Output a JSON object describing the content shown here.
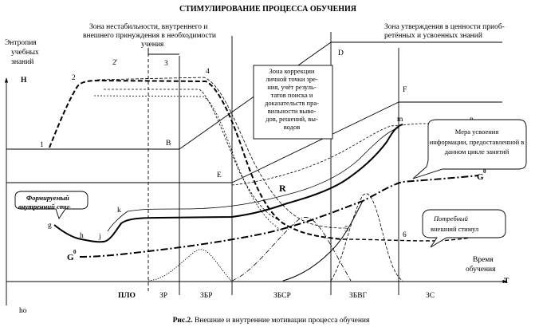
{
  "title": "СТИМУЛИРОВАНИЕ ПРОЦЕССА ОБУЧЕНИЯ",
  "caption_bold": "Рис.2.",
  "caption_text": " Внешние и внутренние мотивации процесса обучения",
  "y_axis": {
    "label_lines": [
      "Энтропия",
      "учебных",
      "знаний"
    ],
    "symbol": "Н",
    "origin": "ho"
  },
  "x_axis": {
    "label_lines": [
      "Время",
      "обучения"
    ],
    "symbol": "Т",
    "zones": [
      "ПЛО",
      "ЗР",
      "ЗБР",
      "ЗБСР",
      "ЗБВГ",
      "ЗС"
    ]
  },
  "zone_texts": {
    "instability": [
      "Зона нестабильности, внутреннего и",
      "внешнего принуждения в необходимости",
      "учения"
    ],
    "affirmation": [
      "Зона утверждения в ценности приоб-",
      "ретённых и усвоенных знаний"
    ],
    "correction": [
      "Зона коррекции",
      "личной точки зре-",
      "ния, учёт резуль-",
      "татов поиска и",
      "доказательств пра-",
      "вильности выво-",
      "дов, решений, вы-",
      "водов"
    ]
  },
  "callouts": {
    "measure": [
      "Мера усвоения",
      "информации, предоставленной в",
      "данном цикле занятий"
    ],
    "forming": [
      "Формируемый",
      "внутренний сти-"
    ],
    "required": [
      "Потребный",
      "внешний стимул"
    ]
  },
  "point_labels": {
    "p1": "1",
    "p2": "2",
    "p2prime": "2'",
    "p3": "3",
    "p4": "4",
    "p5": "5",
    "p6": "6",
    "B": "В",
    "D": "D",
    "E": "E",
    "F": "F",
    "m": "m",
    "n": "n",
    "R": "R",
    "g": "g",
    "h": "h",
    "j": "j",
    "k": "k",
    "G0_left": "G",
    "G0_right": "G",
    "sup0": "0"
  }
}
